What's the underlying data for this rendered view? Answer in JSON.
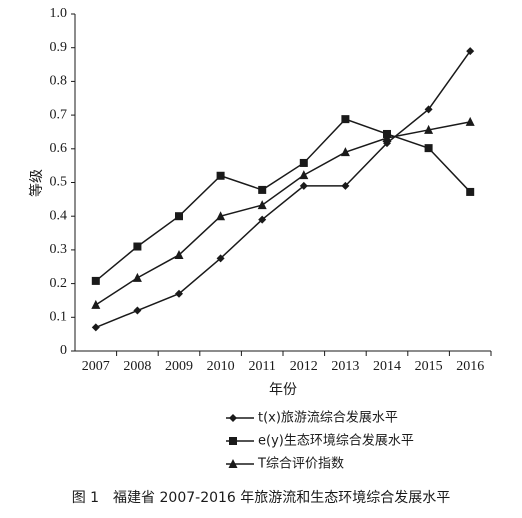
{
  "chart_data": {
    "type": "line",
    "ylabel": "等级",
    "xlabel": "年份",
    "caption": "图 1　福建省 2007-2016 年旅游流和生态环境综合发展水平",
    "categories": [
      "2007",
      "2008",
      "2009",
      "2010",
      "2011",
      "2012",
      "2013",
      "2014",
      "2015",
      "2016"
    ],
    "series": [
      {
        "name": "t(x)旅游流综合发展水平",
        "color": "#1a1a1a",
        "marker": "diamond",
        "values": [
          0.07,
          0.12,
          0.17,
          0.275,
          0.39,
          0.49,
          0.49,
          0.617,
          0.717,
          0.89
        ]
      },
      {
        "name": "e(y)生态环境综合发展水平",
        "color": "#1a1a1a",
        "marker": "square",
        "values": [
          0.208,
          0.31,
          0.4,
          0.52,
          0.478,
          0.558,
          0.688,
          0.644,
          0.602,
          0.472
        ]
      },
      {
        "name": "T综合评价指数",
        "color": "#1a1a1a",
        "marker": "triangle",
        "values": [
          0.137,
          0.217,
          0.285,
          0.4,
          0.433,
          0.522,
          0.59,
          0.632,
          0.656,
          0.68
        ]
      }
    ],
    "ylim": [
      0,
      1
    ],
    "yticks": [
      0,
      0.1,
      0.2,
      0.3,
      0.4,
      0.5,
      0.6,
      0.7,
      0.8,
      0.9,
      {
        "value": 1,
        "label": "1.0"
      }
    ],
    "grid": false
  }
}
